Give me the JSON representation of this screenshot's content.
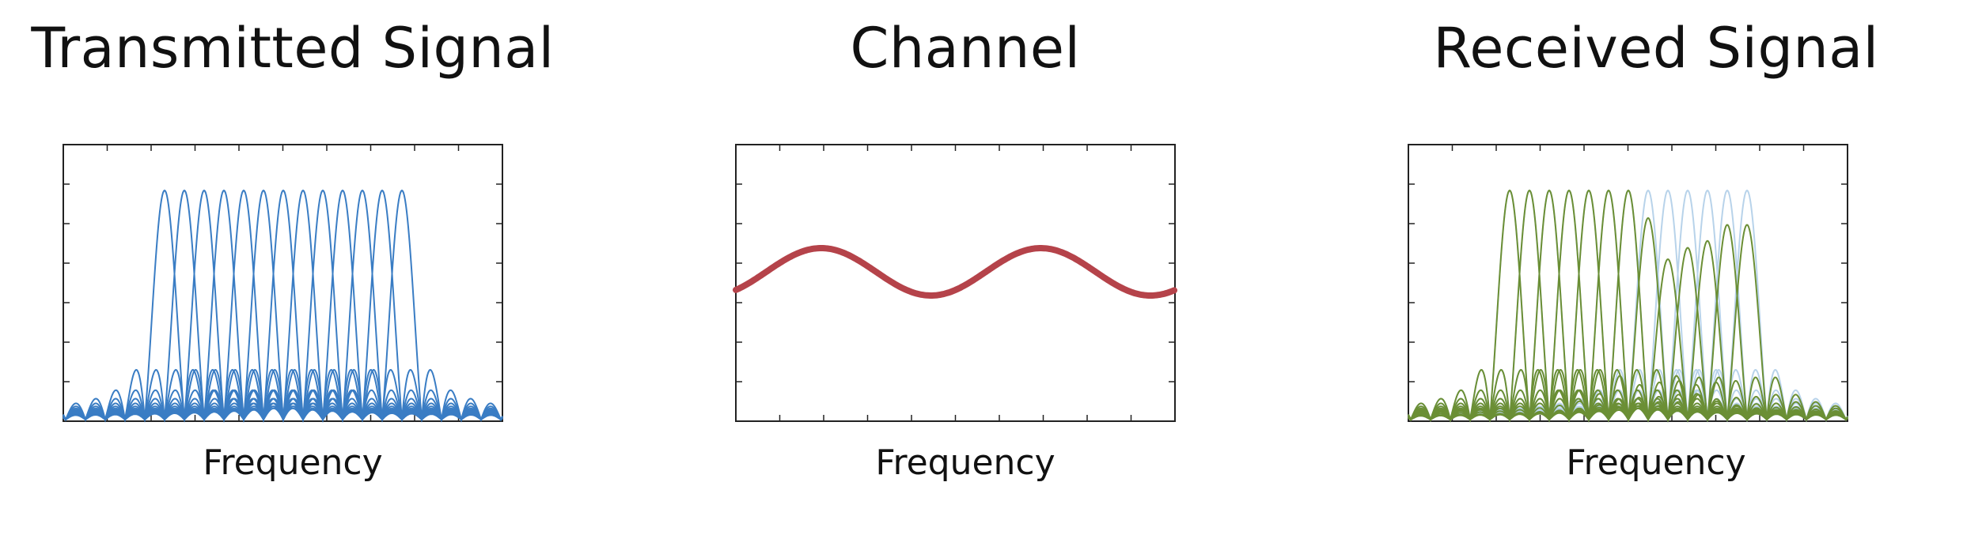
{
  "panels": [
    {
      "title": "Transmitted Signal",
      "xlabel": "Frequency",
      "chart_data": {
        "type": "line",
        "x_axis": "frequency",
        "subcarrier_count": 13,
        "subcarrier_peaks": [
          1,
          1,
          1,
          1,
          1,
          1,
          1,
          1,
          1,
          1,
          1,
          1,
          1
        ],
        "colors": {
          "series": "#3a7dc4",
          "frame": "#222222"
        },
        "ticks": {
          "x": 10,
          "y": 7
        }
      }
    },
    {
      "title": "Channel",
      "xlabel": "Frequency",
      "chart_data": {
        "type": "line",
        "x_axis": "frequency",
        "response": "sinusoid",
        "colors": {
          "series": "#b5434a",
          "frame": "#222222"
        },
        "ticks": {
          "x": 10,
          "y": 7
        }
      }
    },
    {
      "title": "Received Signal",
      "xlabel": "Frequency",
      "chart_data": {
        "type": "line",
        "x_axis": "frequency",
        "subcarrier_count": 13,
        "subcarrier_peaks": [
          1,
          1,
          1,
          1,
          1,
          1,
          1,
          0.88,
          0.7,
          0.75,
          0.78,
          0.85,
          0.85
        ],
        "colors": {
          "series": "#6b8f35",
          "ghost": "#b8d3ea",
          "frame": "#222222"
        },
        "ticks": {
          "x": 10,
          "y": 7
        }
      }
    }
  ]
}
